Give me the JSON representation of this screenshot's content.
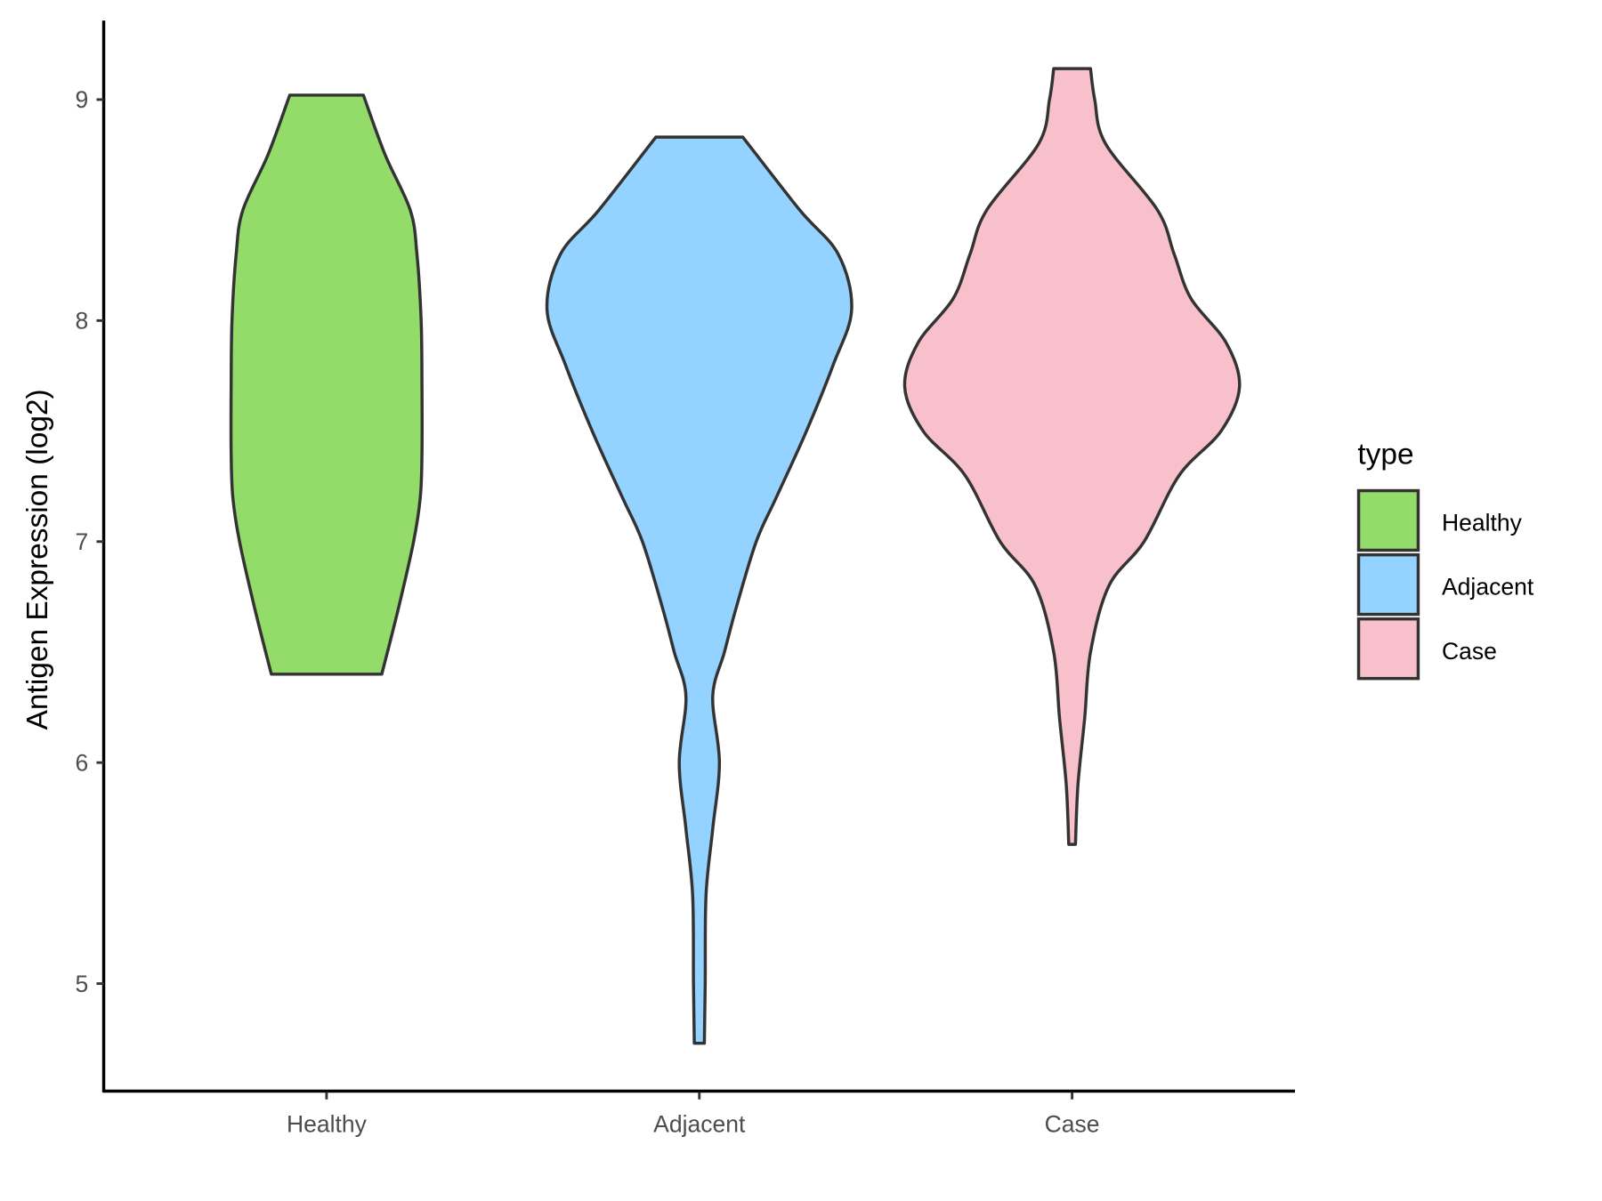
{
  "chart_data": {
    "type": "violin",
    "title": "",
    "xlabel": "",
    "ylabel": "Antigen Expression (log2)",
    "ylim": [
      4.52,
      9.36
    ],
    "yticks": [
      5,
      6,
      7,
      8,
      9
    ],
    "categories": [
      "Healthy",
      "Adjacent",
      "Case"
    ],
    "grid": false,
    "legend": {
      "title": "type",
      "position": "right",
      "entries": [
        "Healthy",
        "Adjacent",
        "Case"
      ]
    },
    "series": [
      {
        "name": "Healthy",
        "color": "#93dc69",
        "profile": [
          [
            6.4,
            0.33
          ],
          [
            6.7,
            0.43
          ],
          [
            7.0,
            0.52
          ],
          [
            7.2,
            0.56
          ],
          [
            7.4,
            0.57
          ],
          [
            7.7,
            0.57
          ],
          [
            8.0,
            0.565
          ],
          [
            8.3,
            0.54
          ],
          [
            8.5,
            0.5
          ],
          [
            8.75,
            0.35
          ],
          [
            9.02,
            0.22
          ]
        ]
      },
      {
        "name": "Adjacent",
        "color": "#94d3ff",
        "profile": [
          [
            4.73,
            0.03
          ],
          [
            5.0,
            0.035
          ],
          [
            5.4,
            0.04
          ],
          [
            5.7,
            0.08
          ],
          [
            6.0,
            0.12
          ],
          [
            6.3,
            0.08
          ],
          [
            6.5,
            0.15
          ],
          [
            6.7,
            0.22
          ],
          [
            7.0,
            0.34
          ],
          [
            7.2,
            0.46
          ],
          [
            7.5,
            0.64
          ],
          [
            7.8,
            0.8
          ],
          [
            8.05,
            0.91
          ],
          [
            8.3,
            0.83
          ],
          [
            8.5,
            0.6
          ],
          [
            8.83,
            0.26
          ]
        ]
      },
      {
        "name": "Case",
        "color": "#f7c0cb",
        "profile": [
          [
            5.63,
            0.02
          ],
          [
            5.9,
            0.035
          ],
          [
            6.2,
            0.075
          ],
          [
            6.5,
            0.11
          ],
          [
            6.8,
            0.22
          ],
          [
            7.0,
            0.43
          ],
          [
            7.3,
            0.64
          ],
          [
            7.5,
            0.89
          ],
          [
            7.7,
            1.0
          ],
          [
            7.9,
            0.92
          ],
          [
            8.1,
            0.71
          ],
          [
            8.3,
            0.61
          ],
          [
            8.5,
            0.51
          ],
          [
            8.8,
            0.2
          ],
          [
            9.0,
            0.135
          ],
          [
            9.14,
            0.11
          ]
        ]
      }
    ]
  }
}
